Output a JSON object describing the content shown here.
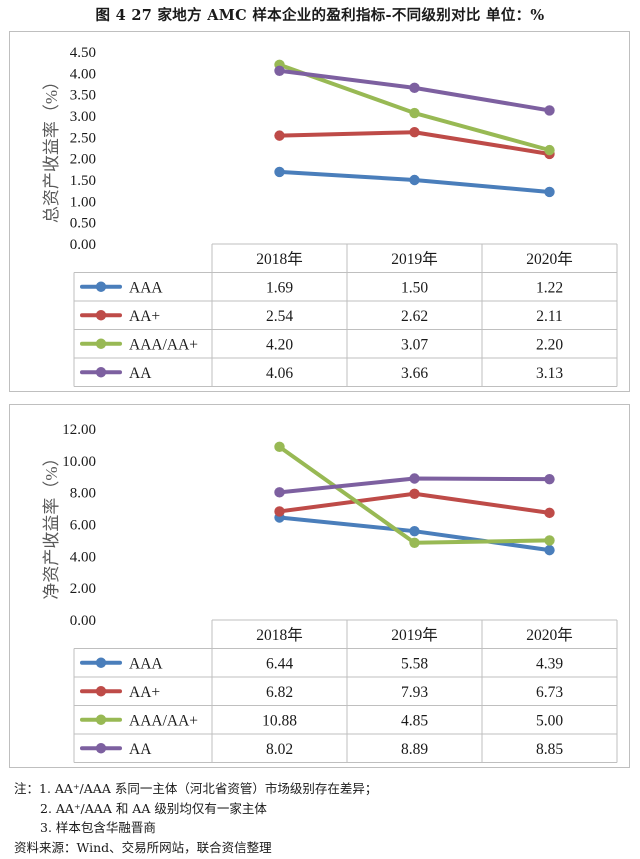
{
  "figure": {
    "title": "图 4   27 家地方 AMC 样本企业的盈利指标-不同级别对比     单位：%"
  },
  "colors": {
    "AAA": "#4a7ebb",
    "AA+": "#be4b48",
    "AAA/AA+": "#98b954",
    "AA": "#7d60a0"
  },
  "chart_data": [
    {
      "type": "line",
      "ylabel": "总资产收益率（%）",
      "categories": [
        "2018年",
        "2019年",
        "2020年"
      ],
      "ylim": [
        0,
        4.5
      ],
      "yticks": [
        "0.00",
        "0.50",
        "1.00",
        "1.50",
        "2.00",
        "2.50",
        "3.00",
        "3.50",
        "4.00",
        "4.50"
      ],
      "grid": false,
      "legend": "data-table",
      "series": [
        {
          "name": "AAA",
          "values": [
            1.69,
            1.5,
            1.22
          ],
          "labels": [
            "1.69",
            "1.50",
            "1.22"
          ]
        },
        {
          "name": "AA+",
          "values": [
            2.54,
            2.62,
            2.11
          ],
          "labels": [
            "2.54",
            "2.62",
            "2.11"
          ]
        },
        {
          "name": "AAA/AA+",
          "values": [
            4.2,
            3.07,
            2.2
          ],
          "labels": [
            "4.20",
            "3.07",
            "2.20"
          ]
        },
        {
          "name": "AA",
          "values": [
            4.06,
            3.66,
            3.13
          ],
          "labels": [
            "4.06",
            "3.66",
            "3.13"
          ]
        }
      ]
    },
    {
      "type": "line",
      "ylabel": "净资产收益率（%）",
      "categories": [
        "2018年",
        "2019年",
        "2020年"
      ],
      "ylim": [
        0,
        12
      ],
      "yticks": [
        "0.00",
        "2.00",
        "4.00",
        "6.00",
        "8.00",
        "10.00",
        "12.00"
      ],
      "grid": false,
      "legend": "data-table",
      "series": [
        {
          "name": "AAA",
          "values": [
            6.44,
            5.58,
            4.39
          ],
          "labels": [
            "6.44",
            "5.58",
            "4.39"
          ]
        },
        {
          "name": "AA+",
          "values": [
            6.82,
            7.93,
            6.73
          ],
          "labels": [
            "6.82",
            "7.93",
            "6.73"
          ]
        },
        {
          "name": "AAA/AA+",
          "values": [
            10.88,
            4.85,
            5.0
          ],
          "labels": [
            "10.88",
            "4.85",
            "5.00"
          ]
        },
        {
          "name": "AA",
          "values": [
            8.02,
            8.89,
            8.85
          ],
          "labels": [
            "8.02",
            "8.89",
            "8.85"
          ]
        }
      ]
    }
  ],
  "notes": {
    "line1": "注：1. AA⁺/AAA 系同一主体（河北省资管）市场级别存在差异；",
    "line2": "2. AA⁺/AAA 和 AA 级别均仅有一家主体",
    "line3": "3. 样本包含华融晋商",
    "source": "资料来源：Wind、交易所网站，联合资信整理"
  }
}
